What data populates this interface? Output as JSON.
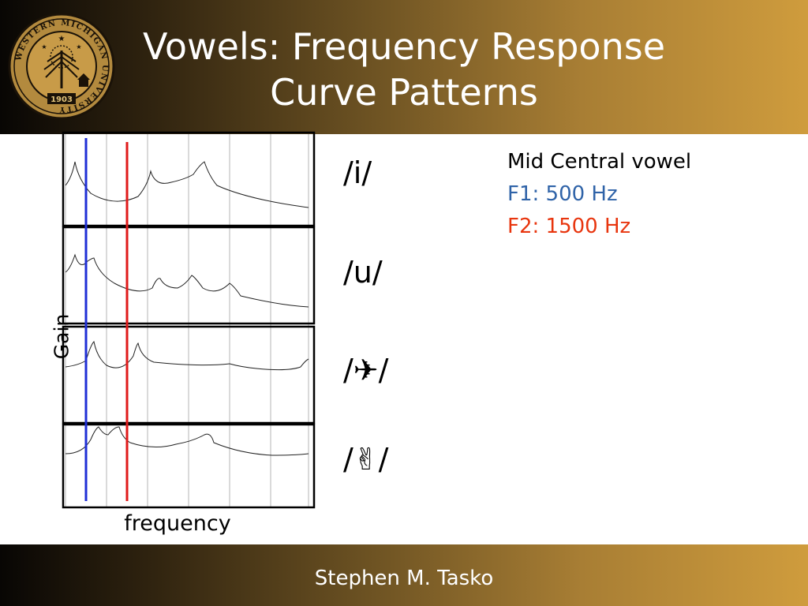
{
  "slide": {
    "title_line1": "Vowels: Frequency Response",
    "title_line2": "Curve Patterns",
    "footer": "Stephen M. Tasko"
  },
  "logo": {
    "name": "WESTERN MICHIGAN UNIVERSITY",
    "year": "1903"
  },
  "figure": {
    "ylabel": "Gain",
    "xlabel": "frequency",
    "f1_line_color": "#1f2fd6",
    "f2_line_color": "#e01a1a"
  },
  "vowels": [
    {
      "label": "/i/"
    },
    {
      "label": "/u/"
    },
    {
      "label": "/✈/"
    },
    {
      "label": "/✌/"
    }
  ],
  "info": {
    "title": "Mid Central vowel",
    "f1": "F1: 500 Hz",
    "f2": "F2: 1500 Hz",
    "f1_color": "#2f63a8",
    "f2_color": "#e8350e"
  }
}
